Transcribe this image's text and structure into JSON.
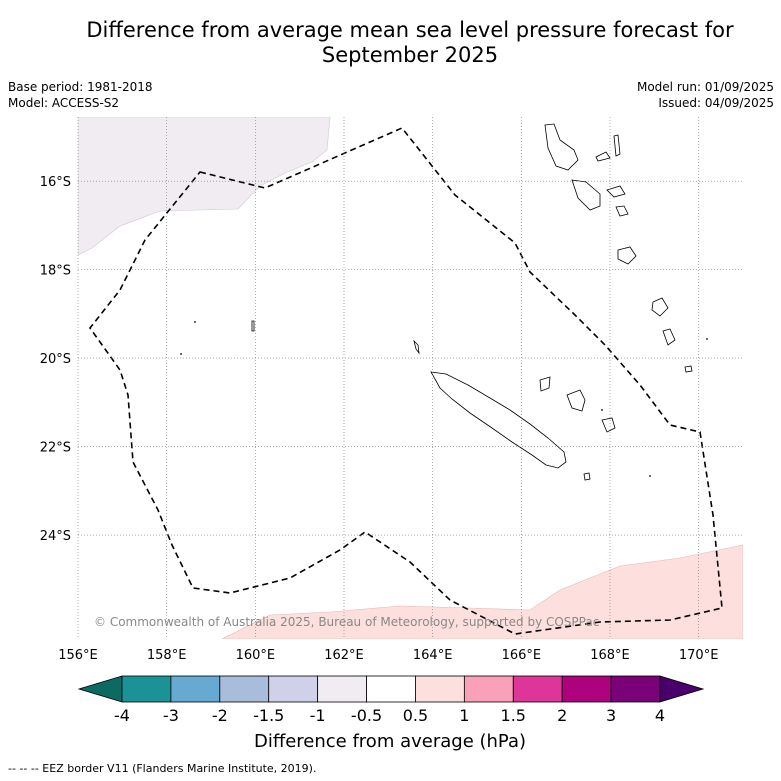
{
  "title": "Difference from average mean sea level pressure forecast for September 2025",
  "base_period": "Base period: 1981-2018",
  "model": "Model: ACCESS-S2",
  "model_run": "Model run: 01/09/2025",
  "issued": "Issued: 04/09/2025",
  "copyright": "© Commonwealth of Australia 2025, Bureau of Meteorology, supported by COSPPac",
  "footnote": "--  --  -- EEZ border V11 (Flanders Marine Institute, 2019).",
  "map": {
    "lon_range": [
      156,
      171
    ],
    "lat_range": [
      -26.35,
      -14.55
    ],
    "lon_ticks": [
      {
        "value": 156,
        "label": "156°E"
      },
      {
        "value": 158,
        "label": "158°E"
      },
      {
        "value": 160,
        "label": "160°E"
      },
      {
        "value": 162,
        "label": "162°E"
      },
      {
        "value": 164,
        "label": "164°E"
      },
      {
        "value": 166,
        "label": "166°E"
      },
      {
        "value": 168,
        "label": "168°E"
      },
      {
        "value": 170,
        "label": "170°E"
      }
    ],
    "lat_ticks": [
      {
        "value": -16,
        "label": "16°S"
      },
      {
        "value": -18,
        "label": "18°S"
      },
      {
        "value": -20,
        "label": "20°S"
      },
      {
        "value": -22,
        "label": "22°S"
      },
      {
        "value": -24,
        "label": "24°S"
      }
    ],
    "gridlines": true
  },
  "colorbar": {
    "label": "Difference from average (hPa)",
    "bins": [
      {
        "color": "#1a9296"
      },
      {
        "color": "#66aad2"
      },
      {
        "color": "#a8bcdc"
      },
      {
        "color": "#d0d0e8"
      },
      {
        "color": "#f0ecf2"
      },
      {
        "color": "#ffffff"
      },
      {
        "color": "#fde0dd"
      },
      {
        "color": "#f9a1b8"
      },
      {
        "color": "#de3598"
      },
      {
        "color": "#ae017e"
      },
      {
        "color": "#7a0177"
      }
    ],
    "under_color": "#0b6b62",
    "over_color": "#49006a",
    "ticks": [
      "-4",
      "-3",
      "-2",
      "-1.5",
      "-1",
      "-0.5",
      "0.5",
      "1",
      "1.5",
      "2",
      "3",
      "4"
    ]
  }
}
